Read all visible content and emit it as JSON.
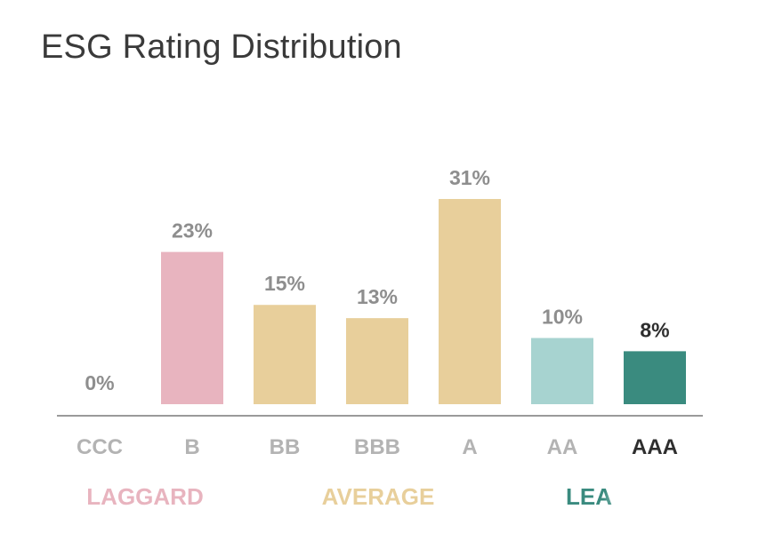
{
  "title": "ESG Rating Distribution",
  "colors": {
    "laggard": "#e8b4bf",
    "average": "#e8cf9b",
    "leader_light": "#a7d3d0",
    "leader_dark": "#3a8b7f",
    "label_gray": "#8e8e8e",
    "cat_gray": "#b3b3b3",
    "axis": "#9a9a9a",
    "dark_text": "#2e2e2e"
  },
  "chart_data": {
    "type": "bar",
    "title": "ESG Rating Distribution",
    "categories": [
      "CCC",
      "B",
      "BB",
      "BBB",
      "A",
      "AA",
      "AAA"
    ],
    "values": [
      0,
      23,
      15,
      13,
      31,
      10,
      8
    ],
    "value_labels": [
      "0%",
      "23%",
      "15%",
      "13%",
      "31%",
      "10%",
      "8%"
    ],
    "bar_colors": [
      "#e8b4bf",
      "#e8b4bf",
      "#e8cf9b",
      "#e8cf9b",
      "#e8cf9b",
      "#a7d3d0",
      "#3a8b7f"
    ],
    "highlighted_category": "AAA",
    "groups": [
      {
        "label": "LAGGARD",
        "color": "#e8b4bf",
        "categories": [
          "CCC",
          "B"
        ]
      },
      {
        "label": "AVERAGE",
        "color": "#e8cf9b",
        "categories": [
          "BB",
          "BBB",
          "A"
        ]
      },
      {
        "label": "LEA",
        "color": "#3a8b7f",
        "categories": [
          "AA",
          "AAA"
        ]
      }
    ],
    "ylim": [
      0,
      31
    ],
    "xlabel": "",
    "ylabel": "",
    "grid": false
  }
}
